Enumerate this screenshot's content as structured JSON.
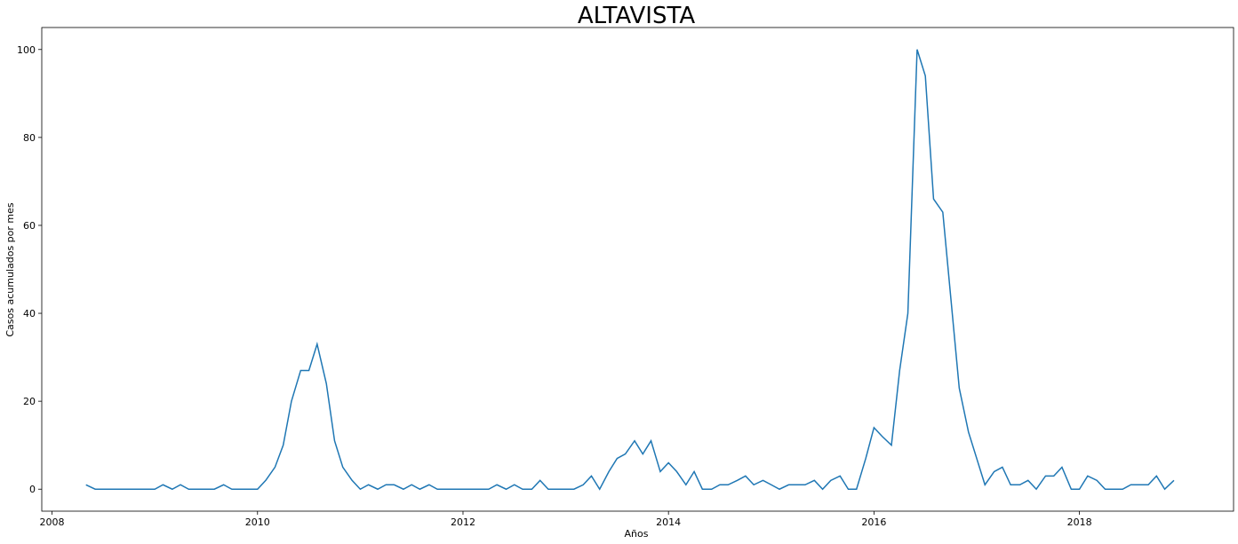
{
  "chart_data": {
    "type": "line",
    "title": "ALTAVISTA",
    "xlabel": "Años",
    "ylabel": "Casos acumulados por mes",
    "xlim": [
      2007.9,
      2019.5
    ],
    "ylim": [
      -5,
      105
    ],
    "x_ticks": [
      2008,
      2010,
      2012,
      2014,
      2016,
      2018
    ],
    "y_ticks": [
      0,
      20,
      40,
      60,
      80,
      100
    ],
    "grid": false,
    "line_color": "#1f77b4",
    "series": [
      {
        "x": [
          2008.33,
          2008.42,
          2008.5,
          2008.58,
          2008.67,
          2008.75,
          2008.83,
          2008.92,
          2009.0,
          2009.08,
          2009.17,
          2009.25,
          2009.33,
          2009.42,
          2009.5,
          2009.58,
          2009.67,
          2009.75,
          2009.83,
          2009.92,
          2010.0,
          2010.08,
          2010.17,
          2010.25,
          2010.33,
          2010.42,
          2010.5,
          2010.58,
          2010.67,
          2010.75,
          2010.83,
          2010.92,
          2011.0,
          2011.08,
          2011.17,
          2011.25,
          2011.33,
          2011.42,
          2011.5,
          2011.58,
          2011.67,
          2011.75,
          2011.83,
          2011.92,
          2012.0,
          2012.08,
          2012.17,
          2012.25,
          2012.33,
          2012.42,
          2012.5,
          2012.58,
          2012.67,
          2012.75,
          2012.83,
          2012.92,
          2013.0,
          2013.08,
          2013.17,
          2013.25,
          2013.33,
          2013.42,
          2013.5,
          2013.58,
          2013.67,
          2013.75,
          2013.83,
          2013.92,
          2014.0,
          2014.08,
          2014.17,
          2014.25,
          2014.33,
          2014.42,
          2014.5,
          2014.58,
          2014.67,
          2014.75,
          2014.83,
          2014.92,
          2015.0,
          2015.08,
          2015.17,
          2015.25,
          2015.33,
          2015.42,
          2015.5,
          2015.58,
          2015.67,
          2015.75,
          2015.83,
          2015.92,
          2016.0,
          2016.08,
          2016.17,
          2016.25,
          2016.33,
          2016.42,
          2016.5,
          2016.58,
          2016.67,
          2016.75,
          2016.83,
          2016.92,
          2017.0,
          2017.08,
          2017.17,
          2017.25,
          2017.33,
          2017.42,
          2017.5,
          2017.58,
          2017.67,
          2017.75,
          2017.83,
          2017.92,
          2018.0,
          2018.08,
          2018.17,
          2018.25,
          2018.33,
          2018.42,
          2018.5,
          2018.58,
          2018.67,
          2018.75,
          2018.83,
          2018.92
        ],
        "values": [
          1,
          0,
          0,
          0,
          0,
          0,
          0,
          0,
          0,
          1,
          0,
          1,
          0,
          0,
          0,
          0,
          1,
          0,
          0,
          0,
          0,
          2,
          5,
          10,
          20,
          27,
          27,
          33,
          24,
          11,
          5,
          2,
          0,
          1,
          0,
          1,
          1,
          0,
          1,
          0,
          1,
          0,
          0,
          0,
          0,
          0,
          0,
          0,
          1,
          0,
          1,
          0,
          0,
          2,
          0,
          0,
          0,
          0,
          1,
          3,
          0,
          4,
          7,
          8,
          11,
          8,
          11,
          4,
          6,
          4,
          1,
          4,
          0,
          0,
          1,
          1,
          2,
          3,
          1,
          2,
          1,
          0,
          1,
          1,
          1,
          2,
          0,
          2,
          3,
          0,
          0,
          7,
          14,
          12,
          10,
          27,
          40,
          100,
          94,
          66,
          63,
          43,
          23,
          13,
          7,
          1,
          4,
          5,
          1,
          1,
          2,
          0,
          3,
          3,
          5,
          0,
          0,
          3,
          2,
          0,
          0,
          0,
          1,
          1,
          1,
          3,
          0,
          2
        ]
      }
    ]
  }
}
